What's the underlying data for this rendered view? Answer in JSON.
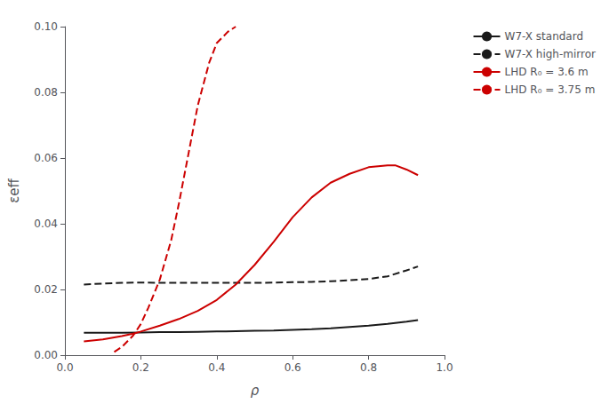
{
  "chart_data": {
    "type": "line",
    "xlabel": "ρ",
    "ylabel": "εeff",
    "xlim": [
      0.0,
      1.0
    ],
    "ylim": [
      0.0,
      0.1
    ],
    "xticks": [
      {
        "value": 0.0,
        "label": "0.0"
      },
      0.2,
      0.4,
      0.6,
      0.8,
      {
        "value": 1.0,
        "label": "1.0"
      }
    ],
    "yticks": [
      {
        "value": 0.0,
        "label": "0.00"
      },
      0.02,
      0.04,
      0.06,
      0.08,
      {
        "value": 0.1,
        "label": "0.10"
      }
    ],
    "grid": false,
    "legend": "right",
    "series": [
      {
        "name": "W7-X standard",
        "color": "#1a1a1a",
        "line_style": "solid",
        "x": [
          0.05,
          0.1,
          0.15,
          0.2,
          0.25,
          0.3,
          0.35,
          0.4,
          0.45,
          0.5,
          0.55,
          0.6,
          0.65,
          0.7,
          0.75,
          0.8,
          0.85,
          0.9,
          0.93
        ],
        "values": [
          0.0068,
          0.0068,
          0.0068,
          0.0069,
          0.007,
          0.007,
          0.0071,
          0.0072,
          0.0073,
          0.0074,
          0.0075,
          0.0077,
          0.0079,
          0.0082,
          0.0086,
          0.009,
          0.0095,
          0.0102,
          0.0107
        ]
      },
      {
        "name": "W7-X high-mirror",
        "color": "#1a1a1a",
        "line_style": "dashed",
        "x": [
          0.05,
          0.1,
          0.15,
          0.2,
          0.25,
          0.3,
          0.35,
          0.4,
          0.45,
          0.5,
          0.55,
          0.6,
          0.65,
          0.7,
          0.75,
          0.8,
          0.85,
          0.9,
          0.93
        ],
        "values": [
          0.0215,
          0.0218,
          0.022,
          0.0221,
          0.022,
          0.022,
          0.022,
          0.022,
          0.022,
          0.022,
          0.0221,
          0.0222,
          0.0223,
          0.0225,
          0.0228,
          0.0232,
          0.024,
          0.0258,
          0.027
        ]
      },
      {
        "name": "LHD R₀ = 3.6 m",
        "color": "#cc0000",
        "line_style": "solid",
        "x": [
          0.05,
          0.1,
          0.15,
          0.185,
          0.2,
          0.25,
          0.3,
          0.35,
          0.4,
          0.45,
          0.5,
          0.55,
          0.6,
          0.65,
          0.7,
          0.75,
          0.8,
          0.85,
          0.87,
          0.9,
          0.93
        ],
        "values": [
          0.0042,
          0.0048,
          0.0058,
          0.0067,
          0.0072,
          0.009,
          0.011,
          0.0135,
          0.0168,
          0.0215,
          0.0275,
          0.0345,
          0.042,
          0.048,
          0.0525,
          0.0552,
          0.0572,
          0.0578,
          0.0578,
          0.0565,
          0.0548
        ]
      },
      {
        "name": "LHD R₀ = 3.75 m",
        "color": "#cc0000",
        "line_style": "dashed",
        "x": [
          0.13,
          0.15,
          0.18,
          0.2,
          0.22,
          0.25,
          0.28,
          0.3,
          0.33,
          0.35,
          0.38,
          0.4,
          0.43,
          0.45
        ],
        "values": [
          0.001,
          0.0025,
          0.006,
          0.0095,
          0.0145,
          0.023,
          0.035,
          0.046,
          0.064,
          0.076,
          0.089,
          0.095,
          0.0985,
          0.1
        ]
      }
    ]
  }
}
